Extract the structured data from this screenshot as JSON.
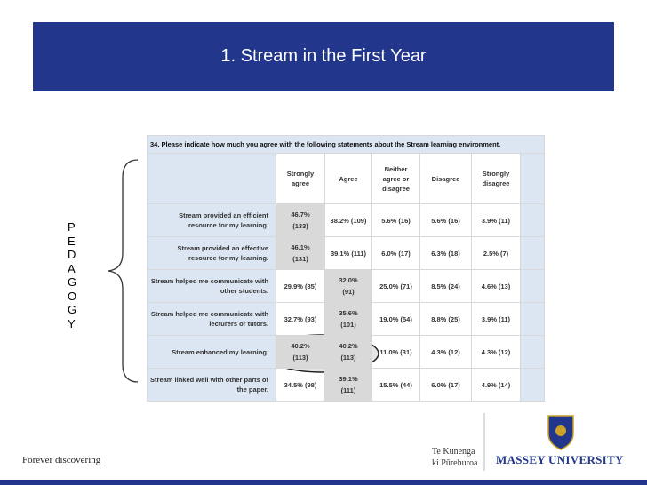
{
  "header": {
    "title": "1. Stream in the First Year"
  },
  "side_label": [
    "P",
    "E",
    "D",
    "A",
    "G",
    "O",
    "G",
    "Y"
  ],
  "table": {
    "question": "34. Please indicate how much you agree with the following statements about the Stream learning environment.",
    "columns": [
      "Strongly agree",
      "Agree",
      "Neither agree or disagree",
      "Disagree",
      "Strongly disagree"
    ],
    "rows": [
      {
        "statement": "Stream provided an efficient resource for my learning.",
        "cells": [
          [
            "46.7%",
            "(133)"
          ],
          [
            "38.2%",
            "(109)"
          ],
          [
            "5.6%",
            "(16)"
          ],
          [
            "5.6%",
            "(16)"
          ],
          [
            "3.9%",
            "(11)"
          ]
        ]
      },
      {
        "statement": "Stream provided an effective resource for my learning.",
        "cells": [
          [
            "46.1%",
            "(131)"
          ],
          [
            "39.1%",
            "(111)"
          ],
          [
            "6.0%",
            "(17)"
          ],
          [
            "6.3%",
            "(18)"
          ],
          [
            "2.5%",
            "(7)"
          ]
        ]
      },
      {
        "statement": "Stream helped me communicate with other students.",
        "cells": [
          [
            "29.9%",
            "(85)"
          ],
          [
            "32.0%",
            "(91)"
          ],
          [
            "25.0%",
            "(71)"
          ],
          [
            "8.5%",
            "(24)"
          ],
          [
            "4.6%",
            "(13)"
          ]
        ]
      },
      {
        "statement": "Stream helped me communicate with lecturers or tutors.",
        "cells": [
          [
            "32.7%",
            "(93)"
          ],
          [
            "35.6%",
            "(101)"
          ],
          [
            "19.0%",
            "(54)"
          ],
          [
            "8.8%",
            "(25)"
          ],
          [
            "3.9%",
            "(11)"
          ]
        ]
      },
      {
        "statement": "Stream enhanced my learning.",
        "cells": [
          [
            "40.2%",
            "(113)"
          ],
          [
            "40.2%",
            "(113)"
          ],
          [
            "11.0%",
            "(31)"
          ],
          [
            "4.3%",
            "(12)"
          ],
          [
            "4.3%",
            "(12)"
          ]
        ]
      },
      {
        "statement": "Stream linked well with other parts of the paper.",
        "cells": [
          [
            "34.5%",
            "(98)"
          ],
          [
            "39.1%",
            "(111)"
          ],
          [
            "15.5%",
            "(44)"
          ],
          [
            "6.0%",
            "(17)"
          ],
          [
            "4.9%",
            "(14)"
          ]
        ]
      }
    ]
  },
  "footer": {
    "tagline": "Forever discovering",
    "maori_line1": "Te Kunenga",
    "maori_line2": "ki Pūrehuroa",
    "university": "MASSEY UNIVERSITY"
  }
}
